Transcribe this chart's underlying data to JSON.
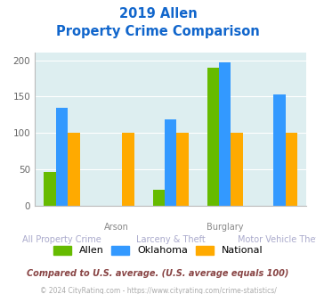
{
  "title_line1": "2019 Allen",
  "title_line2": "Property Crime Comparison",
  "categories": [
    "All Property Crime",
    "Arson",
    "Larceny & Theft",
    "Burglary",
    "Motor Vehicle Theft"
  ],
  "x_labels_top": [
    "",
    "Arson",
    "",
    "Burglary",
    ""
  ],
  "x_labels_bottom": [
    "All Property Crime",
    "",
    "Larceny & Theft",
    "",
    "Motor Vehicle Theft"
  ],
  "series": {
    "Allen": [
      47,
      0,
      22,
      190,
      0
    ],
    "Oklahoma": [
      135,
      0,
      119,
      197,
      153
    ],
    "National": [
      100,
      100,
      100,
      100,
      100
    ]
  },
  "colors": {
    "Allen": "#66bb00",
    "Oklahoma": "#3399ff",
    "National": "#ffaa00"
  },
  "ylim": [
    0,
    210
  ],
  "yticks": [
    0,
    50,
    100,
    150,
    200
  ],
  "bar_width": 0.22,
  "plot_bg": "#ddeef0",
  "title_color": "#1166cc",
  "xlabel_top_color": "#888888",
  "xlabel_bottom_color": "#aaaacc",
  "footer_text": "Compared to U.S. average. (U.S. average equals 100)",
  "copyright_text": "© 2024 CityRating.com - https://www.cityrating.com/crime-statistics/",
  "footer_color": "#884444",
  "copyright_color": "#aaaaaa"
}
